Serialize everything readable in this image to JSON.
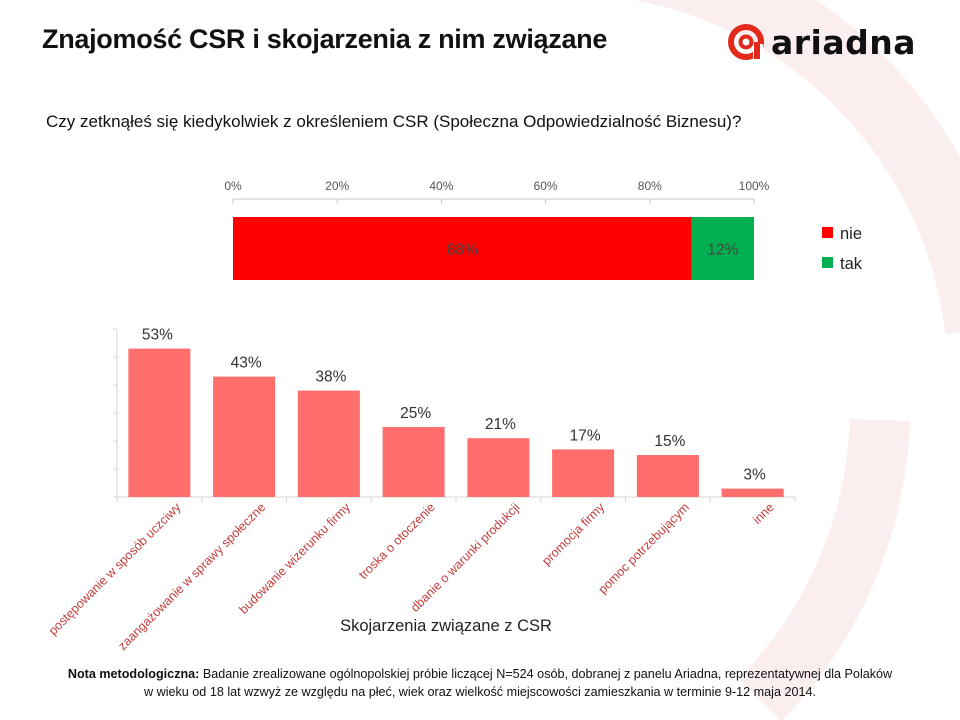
{
  "header": {
    "title": "Znajomość CSR i skojarzenia z nim związane",
    "logo_text": "ariadna"
  },
  "question": "Czy zetknąłeś się kiedykolwiek z określeniem CSR (Społeczna Odpowiedzialność Biznesu)?",
  "colors": {
    "red": "#ff0000",
    "green": "#00b050",
    "bar_pink": "#ff6d6d",
    "logo_red": "#e2291c",
    "bg_arc": "#fbeeee"
  },
  "chart_data": [
    {
      "type": "bar",
      "orientation": "horizontal-stacked",
      "categories": [
        ""
      ],
      "series": [
        {
          "name": "nie",
          "values": [
            88
          ],
          "label": "88%",
          "color": "#ff0000"
        },
        {
          "name": "tak",
          "values": [
            12
          ],
          "label": "12%",
          "color": "#00b050"
        }
      ],
      "x_ticks": [
        "0%",
        "20%",
        "40%",
        "60%",
        "80%",
        "100%"
      ],
      "xlim": [
        0,
        100
      ],
      "legend": [
        "nie",
        "tak"
      ],
      "legend_position": "right"
    },
    {
      "type": "bar",
      "title": "Skojarzenia związane z CSR",
      "categories": [
        "postępowanie w sposób uczciwy",
        "zaangażowanie w sprawy społeczne",
        "budowanie wizerunku firmy",
        "troska o otoczenie",
        "dbanie o warunki produkcji",
        "promocja firmy",
        "pomoc potrzebującym",
        "inne"
      ],
      "values": [
        53,
        43,
        38,
        25,
        21,
        17,
        15,
        3
      ],
      "labels": [
        "53%",
        "43%",
        "38%",
        "25%",
        "21%",
        "17%",
        "15%",
        "3%"
      ],
      "ylim": [
        0,
        60
      ],
      "grid": false
    }
  ],
  "note": {
    "label": "Nota metodologiczna:",
    "text": " Badanie zrealizowane ogólnopolskiej próbie liczącej N=524 osób, dobranej z panelu Ariadna, reprezentatywnej dla Polaków w wieku od 18 lat  wzwyż ze względu na płeć, wiek oraz wielkość miejscowości zamieszkania w terminie 9-12 maja 2014."
  }
}
